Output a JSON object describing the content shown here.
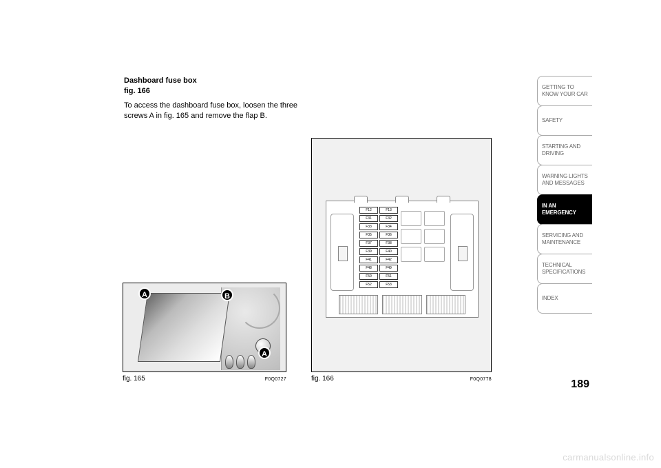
{
  "heading": {
    "line1": "Dashboard fuse box",
    "line2": "fig. 166"
  },
  "body_text": "To access the dashboard fuse box, loosen the three screws A in fig. 165 and remove the flap B.",
  "fig165": {
    "caption": "fig. 165",
    "code": "F0Q0727",
    "markers": {
      "A": "A",
      "B": "B"
    }
  },
  "fig166": {
    "caption": "fig. 166",
    "code": "F0Q0778",
    "fuse_labels": [
      "F12",
      "F13",
      "F31",
      "F32",
      "F33",
      "F34",
      "F35",
      "F36",
      "F37",
      "F38",
      "F39",
      "F40",
      "F41",
      "F42",
      "F48",
      "F49",
      "F50",
      "F51",
      "F52",
      "F53"
    ]
  },
  "sidebar": {
    "items": [
      {
        "label": "GETTING TO KNOW YOUR CAR",
        "active": false
      },
      {
        "label": "SAFETY",
        "active": false
      },
      {
        "label": "STARTING AND DRIVING",
        "active": false
      },
      {
        "label": "WARNING LIGHTS AND MESSAGES",
        "active": false
      },
      {
        "label": "IN AN EMERGENCY",
        "active": true
      },
      {
        "label": "SERVICING AND MAINTENANCE",
        "active": false
      },
      {
        "label": "TECHNICAL SPECIFICATIONS",
        "active": false
      },
      {
        "label": "INDEX",
        "active": false
      }
    ]
  },
  "page_number": "189",
  "watermark": "carmanualsonline.info"
}
